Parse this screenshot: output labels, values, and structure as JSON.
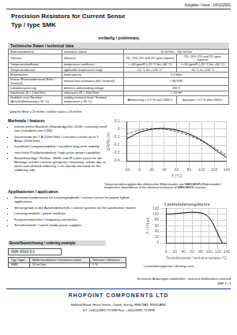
{
  "header": {
    "issue": "Ausgabe / Issue : 14/12/2001",
    "title": "Precision Resistors for Current Sense",
    "subtitle": "Typ / type SMK",
    "status": "vorläufig / preliminary"
  },
  "technical_data": {
    "title": "Technische Daten / technical data",
    "rows": [
      [
        "Widerstandswerte",
        "resistance values",
        "10 mOhm – 500 mOhm"
      ],
      [
        "Toleranz",
        "tolerance",
        "5%, 10% (1% and 2% upon request)",
        "5%, 10% (1% and 2% upon request)"
      ],
      [
        "Temperaturkoeffizient",
        "temperature coefficient",
        "< ±50 ppm/K (+20 °C bis +60 °C)",
        "< ±50 ppm/K (+20 °C bis +60 °C)"
      ],
      [
        "Temperaturbereich",
        "applicable temperature range",
        "-55 °C bis +130 °C*",
        "-55 °C to +130 °C"
      ],
      [
        "Belastbarkeit",
        "load capacity",
        "0.5 Watt"
      ],
      [
        "Innerer Wärmewiderstand (Folie / Terminal)",
        "internal heat resistance (foil / terminal)",
        "< 80 K/W"
      ],
      [
        "Isolationsspannung",
        "dielectric withstanding voltage",
        "200 V"
      ],
      [
        "Induktivität (R > 10mOhm)",
        "inductance (R > 10mOhm)",
        "< 10 nH"
      ],
      [
        "Stabilität unter Nennlast (Anschlußbelastung = 90 °C)",
        "stability (terminal load / Terminal temperature = 90 °C)",
        "Abweichung < 0.5 % nach 2000 h",
        "deviation < 0.5 % after 2000 h"
      ]
    ],
    "footnote": "* gültig für Werte ≥ 20 mOhm / valid for values ≥ 20 mOhm"
  },
  "features": {
    "title": "Merkmale / features",
    "items": [
      "extrem kleine Bauform (Standardgröße 1206) / extremly small size (standard size 1206)",
      "Dauerstrom bis 7 A (10mOhm) / constant current up to 7 Amps (10mOhm)",
      "exzellente Langzeitstabilität / excellent long term stability",
      "sehr hohe Pulsbelastbarkeit / high pulse power capability",
      "Bauteilmontage: Reflow-, Welle und IR-Löten (auch für die Montage auf der Lötseite geeignet) / mounting: reflow, dip- or wave and infrared soldering / can also be mounted on the soldering side"
    ]
  },
  "applications": {
    "title": "Applikationen / application",
    "items": [
      "Strommesswiderstand für Leistungshybride / current sensor for power hybrid applications",
      "Steuergeräte in der Automobiltechnik / control systems for the automotive market",
      "Leistungsmodule / power modules",
      "Frequenzumrichter / frequency converters",
      "Schaltnetzteile / switch mode power supplies"
    ]
  },
  "chart_data": [
    {
      "type": "line",
      "y_label": "ΔR/R0 (%)",
      "x_label": "T (°C)",
      "x": [
        -20,
        0,
        20,
        40,
        60,
        80,
        100,
        120,
        140
      ],
      "series": [
        {
          "color": "#000000",
          "line_style": "solid",
          "values": [
            -0.12,
            -0.04,
            0,
            0.01,
            -0.01,
            -0.06,
            -0.14,
            -0.25,
            -0.36
          ]
        },
        {
          "color": "#555555",
          "line_style": "dashed",
          "values": [
            -0.06,
            -0.01,
            0.01,
            0,
            -0.03,
            -0.08,
            -0.15,
            -0.23,
            -0.33
          ]
        }
      ],
      "xlim": [
        -20,
        140
      ],
      "ylim": [
        -0.4,
        0.1
      ],
      "xticks": [
        -20,
        0,
        20,
        40,
        60,
        80,
        100,
        120,
        140
      ],
      "yticks": [
        -0.4,
        -0.3,
        -0.2,
        -0.1,
        0,
        0.1
      ],
      "grid": true,
      "annotations": [
        "Temperaturabhängigkeit des elektrischen Widerstandes von MANGANIN-Widerständen / temperature dependence of the electrical resistance of MANGANIN-resistors"
      ]
    },
    {
      "type": "line",
      "title": "Lastminderungskurve",
      "y_label": "P / PNom",
      "x_label": "Terminaltemperatur / terminal temperature (°C)",
      "x": [
        0,
        90,
        130
      ],
      "series": [
        {
          "color": "#000000",
          "line_style": "solid",
          "values": [
            100,
            100,
            0
          ]
        }
      ],
      "xlim": [
        0,
        140
      ],
      "ylim": [
        0,
        120
      ],
      "xticks": [
        0,
        20,
        40,
        60,
        80,
        100,
        120,
        140
      ],
      "yticks": [
        0,
        20,
        40,
        60,
        80,
        100,
        120
      ],
      "grid": true,
      "annotations": [
        "Lastminderungskurve / derating curve"
      ]
    }
  ],
  "ordering": {
    "title": "Bestellbezeichnung / ordering example",
    "code": "SMK-R010-5.0",
    "header": [
      "Typ / type",
      "Widerstandswert / resistance value",
      "Toleranz / tolerance"
    ],
    "row": [
      "SMK",
      "10 mOhm",
      "5 %"
    ]
  },
  "footer": {
    "note": "Technische Änderungen vorbehalten - technical modifications reserved",
    "page": "SMK 1 / 3",
    "company": "RHOPOINT COMPONENTS LTD",
    "address": "Holland Road, Hurst Green, Oxted, Surrey, RH8 9AX, ENGLAND",
    "contact": "Tel: +44(0)1883 717988   Fax: +44(0)1883 712938"
  }
}
